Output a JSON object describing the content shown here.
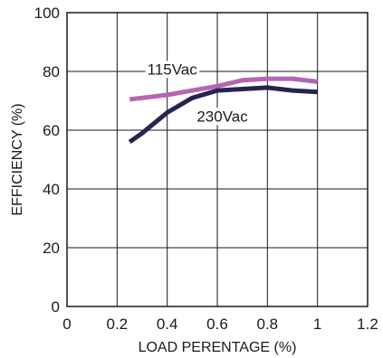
{
  "chart_data": {
    "type": "line",
    "xlabel": "LOAD PERENTAGE (%)",
    "ylabel": "EFFICIENCY (%)",
    "xlim": [
      0,
      1.2
    ],
    "ylim": [
      0,
      100
    ],
    "xticks": [
      0,
      0.2,
      0.4,
      0.6,
      0.8,
      1,
      1.2
    ],
    "xtick_labels": [
      "0",
      "0.2",
      "0.4",
      "0.6",
      "0.8",
      "1",
      "1.2"
    ],
    "yticks": [
      0,
      20,
      40,
      60,
      80,
      100
    ],
    "ytick_labels": [
      "0",
      "20",
      "40",
      "60",
      "80",
      "100"
    ],
    "grid": true,
    "series": [
      {
        "name": "115Vac",
        "color": "#b565b5",
        "x": [
          0.25,
          0.3,
          0.4,
          0.5,
          0.6,
          0.7,
          0.8,
          0.9,
          1.0
        ],
        "y": [
          70.5,
          71,
          72,
          73.5,
          75,
          77,
          77.5,
          77.5,
          76.5
        ]
      },
      {
        "name": "230Vac",
        "color": "#25254f",
        "x": [
          0.25,
          0.3,
          0.4,
          0.5,
          0.6,
          0.7,
          0.8,
          0.9,
          1.0
        ],
        "y": [
          56,
          59,
          66,
          71,
          73.5,
          74,
          74.5,
          73.5,
          73
        ]
      }
    ],
    "annotations": [
      {
        "text": "115Vac",
        "series": "115Vac",
        "x": 0.42,
        "y": 79
      },
      {
        "text": "230Vac",
        "series": "230Vac",
        "x": 0.62,
        "y": 63
      }
    ]
  }
}
